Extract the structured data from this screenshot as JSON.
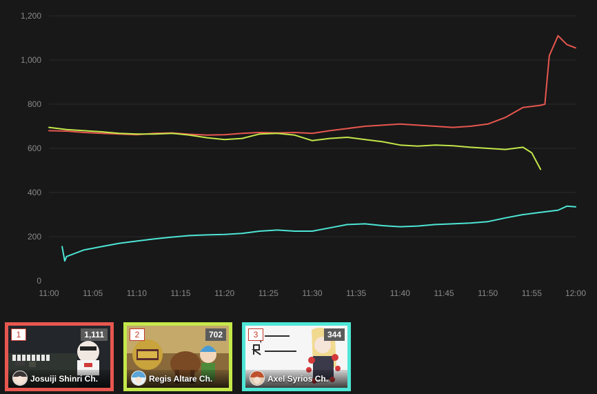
{
  "chart_data": {
    "type": "line",
    "xlabel": "",
    "ylabel": "",
    "x_ticks": [
      "11:00",
      "11:05",
      "11:10",
      "11:15",
      "11:20",
      "11:25",
      "11:30",
      "11:35",
      "11:40",
      "11:45",
      "11:50",
      "11:55",
      "12:00"
    ],
    "y_ticks": [
      "0",
      "200",
      "400",
      "600",
      "800",
      "1,000",
      "1,200"
    ],
    "xlim": [
      "11:00",
      "12:00"
    ],
    "ylim": [
      0,
      1200
    ],
    "grid": true,
    "legend": "none",
    "series": [
      {
        "color": "#e8574f",
        "points": [
          [
            "11:00",
            680
          ],
          [
            "11:02",
            678
          ],
          [
            "11:04",
            672
          ],
          [
            "11:06",
            668
          ],
          [
            "11:08",
            665
          ],
          [
            "11:10",
            662
          ],
          [
            "11:12",
            668
          ],
          [
            "11:14",
            670
          ],
          [
            "11:16",
            664
          ],
          [
            "11:18",
            660
          ],
          [
            "11:20",
            662
          ],
          [
            "11:22",
            668
          ],
          [
            "11:24",
            672
          ],
          [
            "11:26",
            670
          ],
          [
            "11:28",
            672
          ],
          [
            "11:30",
            668
          ],
          [
            "11:32",
            680
          ],
          [
            "11:34",
            690
          ],
          [
            "11:36",
            700
          ],
          [
            "11:38",
            705
          ],
          [
            "11:40",
            710
          ],
          [
            "11:42",
            705
          ],
          [
            "11:44",
            700
          ],
          [
            "11:46",
            695
          ],
          [
            "11:48",
            700
          ],
          [
            "11:50",
            710
          ],
          [
            "11:52",
            740
          ],
          [
            "11:54",
            785
          ],
          [
            "11:56",
            795
          ],
          [
            "11:56.5",
            800
          ],
          [
            "11:57",
            1020
          ],
          [
            "11:58",
            1110
          ],
          [
            "11:59",
            1070
          ],
          [
            "12:00",
            1055
          ]
        ]
      },
      {
        "color": "#c4e84a",
        "points": [
          [
            "11:00",
            695
          ],
          [
            "11:02",
            685
          ],
          [
            "11:04",
            680
          ],
          [
            "11:06",
            675
          ],
          [
            "11:08",
            668
          ],
          [
            "11:10",
            665
          ],
          [
            "11:12",
            665
          ],
          [
            "11:14",
            668
          ],
          [
            "11:16",
            660
          ],
          [
            "11:18",
            648
          ],
          [
            "11:20",
            640
          ],
          [
            "11:22",
            645
          ],
          [
            "11:24",
            665
          ],
          [
            "11:26",
            668
          ],
          [
            "11:28",
            660
          ],
          [
            "11:30",
            635
          ],
          [
            "11:32",
            645
          ],
          [
            "11:34",
            650
          ],
          [
            "11:36",
            640
          ],
          [
            "11:38",
            630
          ],
          [
            "11:40",
            615
          ],
          [
            "11:42",
            610
          ],
          [
            "11:44",
            615
          ],
          [
            "11:46",
            612
          ],
          [
            "11:48",
            605
          ],
          [
            "11:50",
            600
          ],
          [
            "11:52",
            595
          ],
          [
            "11:54",
            605
          ],
          [
            "11:55",
            580
          ],
          [
            "11:56",
            505
          ]
        ]
      },
      {
        "color": "#4ee6d6",
        "points": [
          [
            "11:01.5",
            155
          ],
          [
            "11:01.8",
            90
          ],
          [
            "11:02",
            110
          ],
          [
            "11:03",
            125
          ],
          [
            "11:04",
            140
          ],
          [
            "11:06",
            155
          ],
          [
            "11:08",
            170
          ],
          [
            "11:10",
            180
          ],
          [
            "11:12",
            190
          ],
          [
            "11:14",
            198
          ],
          [
            "11:16",
            205
          ],
          [
            "11:18",
            208
          ],
          [
            "11:20",
            210
          ],
          [
            "11:22",
            215
          ],
          [
            "11:24",
            225
          ],
          [
            "11:26",
            230
          ],
          [
            "11:28",
            225
          ],
          [
            "11:30",
            225
          ],
          [
            "11:32",
            240
          ],
          [
            "11:34",
            255
          ],
          [
            "11:36",
            258
          ],
          [
            "11:38",
            250
          ],
          [
            "11:40",
            245
          ],
          [
            "11:42",
            248
          ],
          [
            "11:44",
            255
          ],
          [
            "11:46",
            258
          ],
          [
            "11:48",
            262
          ],
          [
            "11:50",
            268
          ],
          [
            "11:52",
            285
          ],
          [
            "11:54",
            300
          ],
          [
            "11:56",
            310
          ],
          [
            "11:58",
            320
          ],
          [
            "11:59",
            338
          ],
          [
            "12:00",
            335
          ]
        ]
      }
    ]
  },
  "cards": [
    {
      "rank": "1",
      "count": "1,111",
      "name": "Josuiji Shinri Ch.",
      "border_color": "#e8574f"
    },
    {
      "rank": "2",
      "count": "702",
      "name": "Regis Altare Ch.",
      "border_color": "#c4e84a"
    },
    {
      "rank": "3",
      "count": "344",
      "name": "Axel Syrios Ch.",
      "border_color": "#4ee6d6"
    }
  ]
}
